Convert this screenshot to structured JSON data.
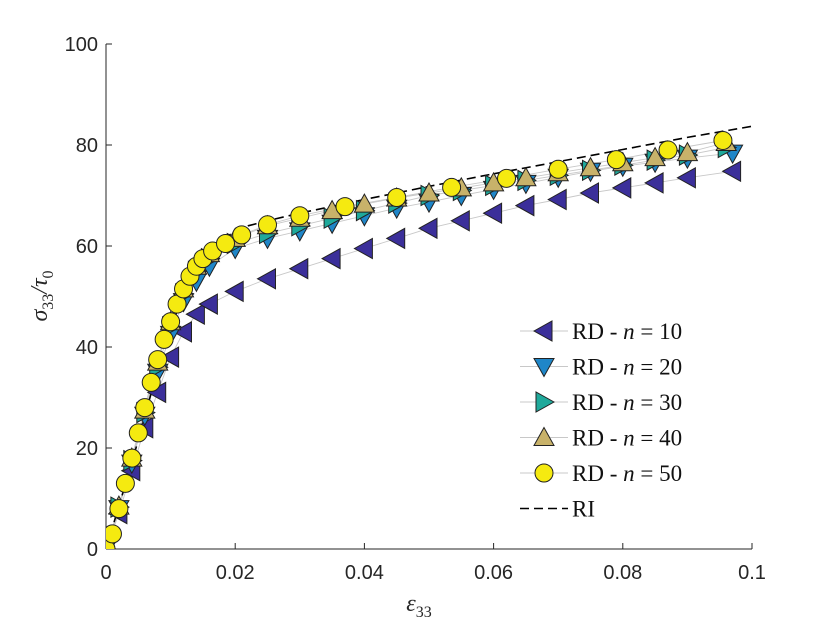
{
  "chart_data": {
    "type": "line",
    "title": "",
    "xlabel": {
      "base": "ε",
      "sub": "33"
    },
    "ylabel": {
      "base": "σ",
      "sub1": "33",
      "slash": "/",
      "base2": "τ",
      "sub2": "0"
    },
    "xlim": [
      0,
      0.1
    ],
    "ylim": [
      0,
      100
    ],
    "xticks": [
      0,
      0.02,
      0.04,
      0.06,
      0.08,
      0.1
    ],
    "xtick_labels": [
      "0",
      "0.02",
      "0.04",
      "0.06",
      "0.08",
      "0.1"
    ],
    "yticks": [
      0,
      20,
      40,
      60,
      80,
      100
    ],
    "ytick_labels": [
      "0",
      "20",
      "40",
      "60",
      "80",
      "100"
    ],
    "grid": false,
    "legend_position": "bottom-right",
    "series": [
      {
        "name": "RD - n = 10",
        "label_prefix": "RD - ",
        "label_var": "n",
        "label_eq": " = 10",
        "marker": "triangle-left",
        "color": "#3b2f9a",
        "points": [
          [
            0,
            0
          ],
          [
            0.002,
            7
          ],
          [
            0.004,
            15.5
          ],
          [
            0.006,
            24
          ],
          [
            0.008,
            31
          ],
          [
            0.01,
            38
          ],
          [
            0.012,
            43
          ],
          [
            0.014,
            46.5
          ],
          [
            0.016,
            48.5
          ],
          [
            0.02,
            51
          ],
          [
            0.025,
            53.5
          ],
          [
            0.03,
            55.5
          ],
          [
            0.035,
            57.5
          ],
          [
            0.04,
            59.5
          ],
          [
            0.045,
            61.5
          ],
          [
            0.05,
            63.5
          ],
          [
            0.055,
            65
          ],
          [
            0.06,
            66.5
          ],
          [
            0.065,
            68
          ],
          [
            0.07,
            69.2
          ],
          [
            0.075,
            70.5
          ],
          [
            0.08,
            71.5
          ],
          [
            0.085,
            72.5
          ],
          [
            0.09,
            73.5
          ],
          [
            0.097,
            74.8
          ]
        ]
      },
      {
        "name": "RD - n = 20",
        "label_prefix": "RD - ",
        "label_var": "n",
        "label_eq": " = 20",
        "marker": "triangle-down",
        "color": "#1f86c8",
        "points": [
          [
            0,
            0
          ],
          [
            0.002,
            8
          ],
          [
            0.004,
            17
          ],
          [
            0.006,
            26.5
          ],
          [
            0.008,
            35
          ],
          [
            0.01,
            42.5
          ],
          [
            0.012,
            49
          ],
          [
            0.014,
            53
          ],
          [
            0.016,
            56
          ],
          [
            0.02,
            59.5
          ],
          [
            0.025,
            61.5
          ],
          [
            0.03,
            63
          ],
          [
            0.035,
            64.5
          ],
          [
            0.04,
            66
          ],
          [
            0.045,
            67.5
          ],
          [
            0.05,
            68.7
          ],
          [
            0.055,
            70
          ],
          [
            0.06,
            71.2
          ],
          [
            0.065,
            72.4
          ],
          [
            0.07,
            73.6
          ],
          [
            0.075,
            74.8
          ],
          [
            0.08,
            75.8
          ],
          [
            0.085,
            76.6
          ],
          [
            0.09,
            77.4
          ],
          [
            0.097,
            78.4
          ]
        ]
      },
      {
        "name": "RD - n = 30",
        "label_prefix": "RD - ",
        "label_var": "n",
        "label_eq": " = 30",
        "marker": "triangle-right",
        "color": "#1fa99b",
        "points": [
          [
            0,
            0
          ],
          [
            0.002,
            8.3
          ],
          [
            0.004,
            17.5
          ],
          [
            0.006,
            27
          ],
          [
            0.008,
            36
          ],
          [
            0.01,
            44
          ],
          [
            0.012,
            50.5
          ],
          [
            0.014,
            55
          ],
          [
            0.016,
            57.5
          ],
          [
            0.02,
            60.5
          ],
          [
            0.025,
            62.5
          ],
          [
            0.03,
            64
          ],
          [
            0.035,
            65.5
          ],
          [
            0.04,
            67
          ],
          [
            0.045,
            68.5
          ],
          [
            0.05,
            70
          ],
          [
            0.055,
            71
          ],
          [
            0.06,
            72
          ],
          [
            0.065,
            73
          ],
          [
            0.07,
            74
          ],
          [
            0.075,
            75
          ],
          [
            0.08,
            76
          ],
          [
            0.085,
            77
          ],
          [
            0.09,
            78
          ],
          [
            0.096,
            79.5
          ]
        ]
      },
      {
        "name": "RD - n = 40",
        "label_prefix": "RD - ",
        "label_var": "n",
        "label_eq": " = 40",
        "marker": "triangle-up",
        "color": "#c8b26a",
        "points": [
          [
            0,
            0
          ],
          [
            0.002,
            8.5
          ],
          [
            0.004,
            18
          ],
          [
            0.006,
            27.5
          ],
          [
            0.008,
            37
          ],
          [
            0.01,
            45
          ],
          [
            0.012,
            51.5
          ],
          [
            0.014,
            56
          ],
          [
            0.016,
            58.5
          ],
          [
            0.02,
            61.5
          ],
          [
            0.025,
            64
          ],
          [
            0.03,
            65.5
          ],
          [
            0.035,
            67
          ],
          [
            0.04,
            68.3
          ],
          [
            0.045,
            69.5
          ],
          [
            0.05,
            70.5
          ],
          [
            0.055,
            71.5
          ],
          [
            0.06,
            72.5
          ],
          [
            0.065,
            73.5
          ],
          [
            0.07,
            74.5
          ],
          [
            0.075,
            75.5
          ],
          [
            0.08,
            76.5
          ],
          [
            0.085,
            77.5
          ],
          [
            0.09,
            78.5
          ],
          [
            0.096,
            80.5
          ]
        ]
      },
      {
        "name": "RD - n = 50",
        "label_prefix": "RD - ",
        "label_var": "n",
        "label_eq": " = 50",
        "marker": "circle",
        "color": "#f5ea10",
        "points": [
          [
            0,
            0
          ],
          [
            0.001,
            3
          ],
          [
            0.002,
            8
          ],
          [
            0.003,
            13
          ],
          [
            0.004,
            18
          ],
          [
            0.005,
            23
          ],
          [
            0.006,
            28
          ],
          [
            0.007,
            33
          ],
          [
            0.008,
            37.5
          ],
          [
            0.009,
            41.5
          ],
          [
            0.01,
            45
          ],
          [
            0.011,
            48.5
          ],
          [
            0.012,
            51.5
          ],
          [
            0.013,
            54
          ],
          [
            0.014,
            56
          ],
          [
            0.015,
            57.5
          ],
          [
            0.0165,
            59
          ],
          [
            0.0185,
            60.5
          ],
          [
            0.021,
            62.2
          ],
          [
            0.025,
            64.2
          ],
          [
            0.03,
            66
          ],
          [
            0.037,
            67.8
          ],
          [
            0.045,
            69.6
          ],
          [
            0.0535,
            71.6
          ],
          [
            0.062,
            73.4
          ],
          [
            0.07,
            75.2
          ],
          [
            0.079,
            77.1
          ],
          [
            0.087,
            79
          ],
          [
            0.0955,
            80.9
          ]
        ]
      }
    ],
    "reference": {
      "name": "RI",
      "style": "dashed",
      "color": "#000000",
      "points": [
        [
          0,
          0
        ],
        [
          0.004,
          17
        ],
        [
          0.008,
          35.5
        ],
        [
          0.012,
          51
        ],
        [
          0.015,
          58
        ],
        [
          0.018,
          61.5
        ],
        [
          0.022,
          64
        ],
        [
          0.026,
          65.3
        ],
        [
          0.03,
          66.5
        ],
        [
          0.04,
          69.2
        ],
        [
          0.05,
          71.8
        ],
        [
          0.06,
          74.3
        ],
        [
          0.07,
          76.7
        ],
        [
          0.08,
          79.1
        ],
        [
          0.09,
          81.5
        ],
        [
          0.1,
          83.7
        ]
      ]
    }
  }
}
